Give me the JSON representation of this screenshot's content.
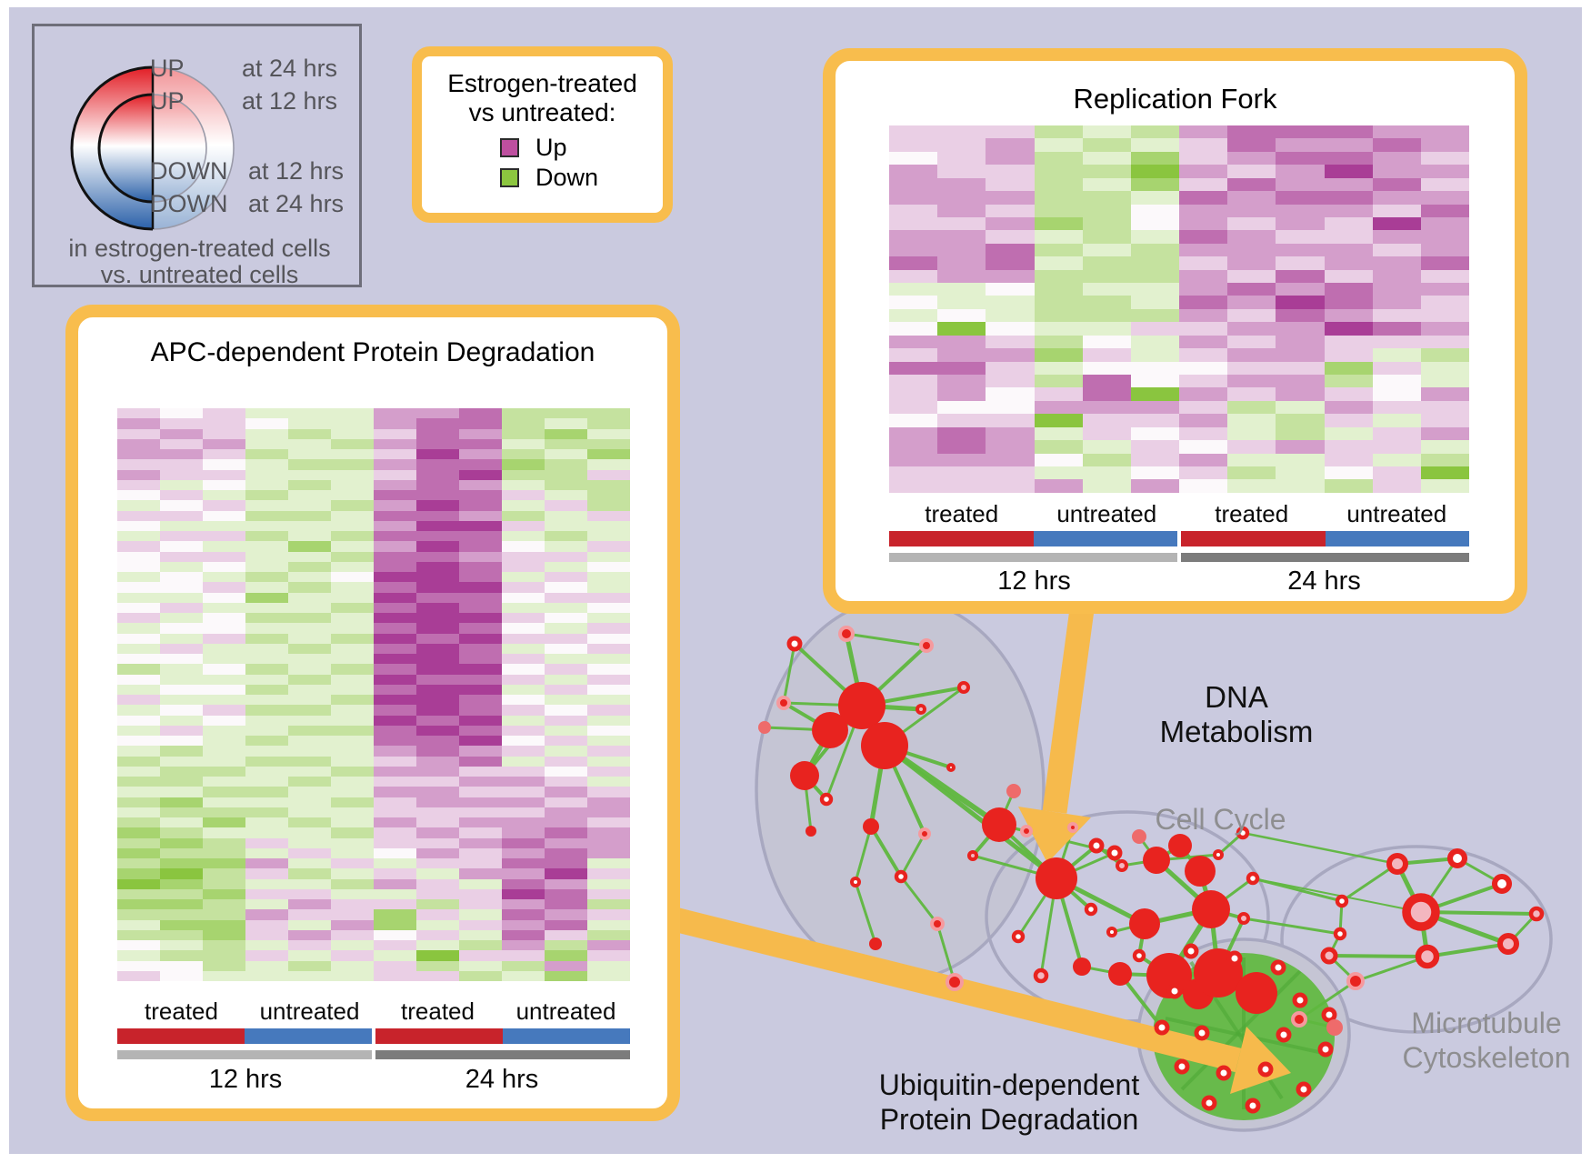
{
  "palette": {
    "background": "#CACADF",
    "frame": "#FFFFFF",
    "panel_border": "#F8BD4D",
    "panel_bg": "#FFFFFF",
    "up_magenta": "#BE4F9F",
    "down_green": "#8CC63F",
    "treated_red": "#C8232B",
    "untreated_blue": "#4679BD",
    "gray_12hrs": "#B4B4B4",
    "gray_24hrs": "#7C7C7C",
    "node_red": "#E8231F",
    "node_pink": "#F3B6BF",
    "edge_green": "#5FB83F",
    "arrow_orange": "#F6BA4C",
    "ellipse_fill": "#C5C5D4",
    "ellipse_stroke": "#A8A8C0",
    "gray_label": "#8E8E90",
    "legend_text": "#55555A"
  },
  "updown": {
    "up24": {
      "word": "UP",
      "time": "at 24 hrs"
    },
    "up12": {
      "word": "UP",
      "time": "at 12 hrs"
    },
    "down12": {
      "word": "DOWN",
      "time": "at 12 hrs"
    },
    "down24": {
      "word": "DOWN",
      "time": "at 24 hrs"
    },
    "footer1": "in estrogen-treated cells",
    "footer2": "vs. untreated cells"
  },
  "color_legend": {
    "title_line1": "Estrogen-treated",
    "title_line2": "vs untreated:",
    "items": [
      {
        "label": "Up",
        "color": "#BE4F9F"
      },
      {
        "label": "Down",
        "color": "#8CC63F"
      }
    ]
  },
  "panels": [
    {
      "id": "replication-fork",
      "title": "Replication Fork",
      "group_labels": [
        "treated",
        "untreated",
        "treated",
        "untreated"
      ],
      "time_labels": [
        "12 hrs",
        "24 hrs"
      ]
    },
    {
      "id": "apc",
      "title": "APC-dependent Protein Degradation",
      "group_labels": [
        "treated",
        "untreated",
        "treated",
        "untreated"
      ],
      "time_labels": [
        "12 hrs",
        "24 hrs"
      ]
    }
  ],
  "network": {
    "clusters": [
      {
        "label": "DNA Metabolism",
        "color": "#111111"
      },
      {
        "label": "Cell Cycle",
        "color": "#8E8E90"
      },
      {
        "label": "Microtubule",
        "label2": "Cytoskeleton",
        "color": "#8E8E90"
      },
      {
        "label": "Ubiquitin-dependent",
        "label2": "Protein Degradation",
        "color": "#111111"
      }
    ]
  },
  "chart_data": [
    {
      "type": "heatmap",
      "title": "Replication Fork",
      "col_groups": [
        {
          "label": "treated",
          "time": "12 hrs",
          "cols": 3
        },
        {
          "label": "untreated",
          "time": "12 hrs",
          "cols": 3
        },
        {
          "label": "treated",
          "time": "24 hrs",
          "cols": 3
        },
        {
          "label": "untreated",
          "time": "24 hrs",
          "cols": 3
        }
      ],
      "scale": {
        "positive": "up in estrogen-treated (magenta)",
        "negative": "down in estrogen-treated (green)",
        "range": [
          -4,
          4
        ]
      },
      "values": [
        [
          1,
          1,
          1,
          -2,
          -1,
          -2,
          2,
          3,
          3,
          3,
          2,
          2
        ],
        [
          1,
          1,
          2,
          -1,
          -2,
          -1,
          1,
          3,
          2,
          2,
          3,
          2
        ],
        [
          0,
          1,
          2,
          -2,
          -1,
          -3,
          1,
          2,
          3,
          3,
          2,
          1
        ],
        [
          2,
          1,
          1,
          -2,
          -2,
          -4,
          2,
          1,
          2,
          4,
          2,
          2
        ],
        [
          2,
          2,
          1,
          -2,
          -1,
          -3,
          1,
          3,
          2,
          2,
          3,
          1
        ],
        [
          2,
          2,
          2,
          -2,
          -2,
          -1,
          3,
          2,
          3,
          3,
          2,
          2
        ],
        [
          1,
          2,
          1,
          -2,
          -2,
          0,
          2,
          2,
          2,
          2,
          1,
          3
        ],
        [
          1,
          1,
          2,
          -3,
          -2,
          0,
          2,
          1,
          2,
          1,
          4,
          2
        ],
        [
          2,
          2,
          1,
          -1,
          -2,
          -1,
          3,
          2,
          1,
          1,
          2,
          2
        ],
        [
          2,
          2,
          3,
          -2,
          -1,
          -2,
          2,
          2,
          2,
          2,
          1,
          2
        ],
        [
          3,
          2,
          3,
          -1,
          -2,
          -2,
          1,
          2,
          1,
          2,
          2,
          3
        ],
        [
          1,
          2,
          2,
          -2,
          -2,
          -2,
          2,
          1,
          3,
          1,
          2,
          1
        ],
        [
          -1,
          -1,
          0,
          -2,
          -1,
          -1,
          2,
          3,
          2,
          3,
          2,
          2
        ],
        [
          0,
          -1,
          -1,
          -2,
          -2,
          -1,
          3,
          2,
          4,
          3,
          2,
          1
        ],
        [
          -1,
          0,
          -1,
          -2,
          -2,
          -2,
          2,
          1,
          3,
          2,
          1,
          1
        ],
        [
          0,
          -4,
          0,
          -1,
          -1,
          1,
          1,
          2,
          2,
          4,
          3,
          2
        ],
        [
          2,
          2,
          1,
          -2,
          0,
          -1,
          2,
          1,
          2,
          1,
          1,
          1
        ],
        [
          1,
          2,
          2,
          -3,
          1,
          -1,
          1,
          2,
          2,
          1,
          -1,
          -2
        ],
        [
          3,
          3,
          1,
          -1,
          0,
          0,
          0,
          1,
          1,
          -3,
          1,
          -1
        ],
        [
          1,
          2,
          1,
          -2,
          3,
          0,
          1,
          2,
          2,
          -2,
          0,
          -1
        ],
        [
          1,
          2,
          0,
          1,
          3,
          -4,
          2,
          1,
          2,
          1,
          0,
          2
        ],
        [
          1,
          0,
          0,
          2,
          2,
          2,
          1,
          -2,
          -1,
          2,
          1,
          1
        ],
        [
          0,
          1,
          1,
          -4,
          1,
          1,
          2,
          -1,
          -2,
          1,
          -1,
          1
        ],
        [
          2,
          3,
          2,
          -1,
          1,
          0,
          1,
          -1,
          -2,
          -1,
          1,
          2
        ],
        [
          2,
          3,
          2,
          -2,
          -1,
          1,
          0,
          1,
          2,
          1,
          1,
          -1
        ],
        [
          2,
          2,
          2,
          0,
          -2,
          1,
          2,
          -1,
          -1,
          1,
          -1,
          -2
        ],
        [
          1,
          1,
          1,
          -1,
          -1,
          0,
          1,
          -2,
          -1,
          0,
          1,
          -4
        ],
        [
          1,
          1,
          1,
          2,
          -1,
          2,
          0,
          -1,
          -1,
          -2,
          1,
          -1
        ]
      ]
    },
    {
      "type": "heatmap",
      "title": "APC-dependent Protein Degradation",
      "col_groups": [
        {
          "label": "treated",
          "time": "12 hrs",
          "cols": 3
        },
        {
          "label": "untreated",
          "time": "12 hrs",
          "cols": 3
        },
        {
          "label": "treated",
          "time": "24 hrs",
          "cols": 3
        },
        {
          "label": "untreated",
          "time": "24 hrs",
          "cols": 3
        }
      ],
      "scale": {
        "positive": "up in estrogen-treated (magenta)",
        "negative": "down in estrogen-treated (green)",
        "range": [
          -4,
          4
        ]
      },
      "values": [
        [
          1,
          0,
          1,
          -1,
          -1,
          -1,
          2,
          2,
          3,
          -2,
          -2,
          -2
        ],
        [
          2,
          1,
          1,
          0,
          -1,
          -1,
          2,
          3,
          3,
          -2,
          -1,
          -2
        ],
        [
          1,
          2,
          1,
          -1,
          -2,
          -1,
          1,
          3,
          2,
          -2,
          -3,
          -1
        ],
        [
          2,
          1,
          2,
          -1,
          -1,
          -2,
          2,
          3,
          3,
          -1,
          -2,
          -2
        ],
        [
          2,
          2,
          1,
          -2,
          -1,
          -1,
          1,
          4,
          2,
          -2,
          -1,
          -3
        ],
        [
          1,
          1,
          0,
          -1,
          -2,
          -2,
          2,
          3,
          3,
          -3,
          -2,
          -1
        ],
        [
          2,
          1,
          1,
          -1,
          -1,
          -1,
          1,
          3,
          4,
          -2,
          -2,
          1
        ],
        [
          1,
          -1,
          0,
          -1,
          -2,
          -1,
          2,
          3,
          2,
          -1,
          -2,
          -2
        ],
        [
          0,
          1,
          -1,
          -2,
          -1,
          -1,
          3,
          3,
          3,
          1,
          -1,
          -2
        ],
        [
          -1,
          0,
          1,
          -1,
          -1,
          -2,
          2,
          4,
          3,
          -1,
          1,
          -2
        ],
        [
          1,
          1,
          0,
          -2,
          -2,
          -1,
          3,
          3,
          2,
          -2,
          -1,
          1
        ],
        [
          0,
          -1,
          -1,
          -1,
          -1,
          -1,
          2,
          4,
          4,
          1,
          -1,
          -1
        ],
        [
          -1,
          1,
          1,
          -2,
          -1,
          -2,
          3,
          3,
          3,
          -1,
          -2,
          -1
        ],
        [
          1,
          0,
          -1,
          -1,
          -3,
          -1,
          2,
          4,
          3,
          0,
          -1,
          1
        ],
        [
          0,
          1,
          1,
          -1,
          -1,
          -2,
          3,
          3,
          2,
          1,
          1,
          -1
        ],
        [
          0,
          -1,
          0,
          -1,
          -2,
          -1,
          3,
          4,
          3,
          1,
          -1,
          0
        ],
        [
          -1,
          0,
          -1,
          -2,
          -1,
          0,
          4,
          4,
          3,
          -1,
          1,
          -1
        ],
        [
          0,
          0,
          1,
          -1,
          -2,
          -1,
          3,
          4,
          4,
          1,
          0,
          -1
        ],
        [
          -1,
          -1,
          0,
          -3,
          -1,
          -1,
          4,
          3,
          3,
          0,
          1,
          1
        ],
        [
          0,
          1,
          -1,
          -1,
          -1,
          -2,
          3,
          4,
          3,
          -1,
          -1,
          0
        ],
        [
          1,
          -1,
          0,
          -2,
          -2,
          -1,
          4,
          4,
          4,
          1,
          0,
          -1
        ],
        [
          -1,
          0,
          0,
          -1,
          -1,
          -1,
          3,
          4,
          3,
          0,
          -1,
          1
        ],
        [
          0,
          -1,
          1,
          -2,
          -1,
          -2,
          4,
          3,
          4,
          1,
          1,
          0
        ],
        [
          -1,
          1,
          -1,
          -1,
          -2,
          -1,
          3,
          4,
          3,
          -1,
          0,
          1
        ],
        [
          0,
          0,
          -1,
          -1,
          -1,
          -1,
          4,
          4,
          3,
          1,
          -1,
          -1
        ],
        [
          -2,
          -1,
          0,
          -2,
          -1,
          -2,
          3,
          4,
          4,
          0,
          1,
          0
        ],
        [
          0,
          -1,
          -1,
          -1,
          -2,
          -1,
          4,
          3,
          3,
          1,
          -1,
          1
        ],
        [
          -1,
          0,
          0,
          -2,
          -1,
          -1,
          3,
          4,
          4,
          -1,
          1,
          0
        ],
        [
          1,
          -1,
          -1,
          -1,
          -1,
          -2,
          4,
          4,
          3,
          0,
          -1,
          -1
        ],
        [
          -1,
          0,
          1,
          -2,
          -2,
          -1,
          3,
          4,
          3,
          1,
          0,
          1
        ],
        [
          0,
          -1,
          0,
          -1,
          -1,
          -1,
          4,
          3,
          4,
          -1,
          1,
          -1
        ],
        [
          -1,
          1,
          -1,
          -1,
          -2,
          -2,
          3,
          4,
          3,
          1,
          -1,
          0
        ],
        [
          0,
          0,
          -1,
          -2,
          -1,
          -1,
          3,
          3,
          4,
          0,
          1,
          -1
        ],
        [
          -1,
          -2,
          -1,
          -1,
          -1,
          -1,
          2,
          3,
          2,
          1,
          -1,
          1
        ],
        [
          -2,
          -1,
          -1,
          -2,
          -2,
          -1,
          1,
          2,
          3,
          -1,
          1,
          -1
        ],
        [
          -1,
          -2,
          -2,
          -1,
          -1,
          -2,
          2,
          2,
          1,
          1,
          0,
          1
        ],
        [
          -2,
          -2,
          -1,
          -1,
          -2,
          -1,
          1,
          1,
          2,
          2,
          1,
          -1
        ],
        [
          -1,
          -1,
          -2,
          -2,
          -1,
          -1,
          2,
          2,
          1,
          1,
          2,
          1
        ],
        [
          -2,
          -3,
          -1,
          -1,
          -1,
          -2,
          1,
          2,
          2,
          2,
          1,
          2
        ],
        [
          -1,
          -2,
          -2,
          -2,
          -1,
          -1,
          1,
          1,
          1,
          1,
          2,
          2
        ],
        [
          -2,
          -1,
          -3,
          -1,
          -2,
          -1,
          2,
          1,
          2,
          2,
          2,
          1
        ],
        [
          -3,
          -2,
          -1,
          -1,
          -1,
          -2,
          1,
          2,
          1,
          2,
          3,
          2
        ],
        [
          -2,
          -3,
          -2,
          1,
          -1,
          -1,
          1,
          1,
          2,
          3,
          2,
          2
        ],
        [
          -3,
          -2,
          -2,
          -1,
          1,
          -1,
          0,
          2,
          1,
          2,
          3,
          2
        ],
        [
          -2,
          -3,
          -3,
          2,
          -1,
          1,
          -1,
          1,
          1,
          3,
          3,
          -1
        ],
        [
          -3,
          -4,
          -2,
          1,
          -2,
          -1,
          1,
          -1,
          2,
          2,
          4,
          1
        ],
        [
          -4,
          -3,
          -2,
          -1,
          -1,
          -2,
          2,
          1,
          -1,
          3,
          2,
          -1
        ],
        [
          -2,
          -2,
          -3,
          1,
          1,
          -1,
          -1,
          1,
          1,
          4,
          3,
          1
        ],
        [
          -3,
          -3,
          -2,
          -1,
          2,
          1,
          1,
          -2,
          1,
          2,
          3,
          -2
        ],
        [
          -2,
          -2,
          -2,
          2,
          1,
          1,
          -3,
          1,
          -1,
          3,
          2,
          1
        ],
        [
          -1,
          -3,
          -3,
          1,
          -1,
          2,
          -3,
          -1,
          1,
          2,
          3,
          -1
        ],
        [
          -2,
          -2,
          -3,
          1,
          2,
          1,
          0,
          1,
          -1,
          3,
          1,
          -2
        ],
        [
          0,
          -1,
          -2,
          -1,
          1,
          -1,
          1,
          -1,
          -2,
          2,
          -2,
          2
        ],
        [
          -1,
          -2,
          -2,
          1,
          -1,
          1,
          -1,
          -4,
          1,
          1,
          -3,
          1
        ],
        [
          0,
          0,
          -2,
          -1,
          -2,
          -1,
          1,
          -2,
          -1,
          -2,
          2,
          -1
        ],
        [
          1,
          0,
          -1,
          -1,
          -1,
          -1,
          1,
          1,
          -2,
          -1,
          -3,
          -1
        ]
      ]
    }
  ]
}
